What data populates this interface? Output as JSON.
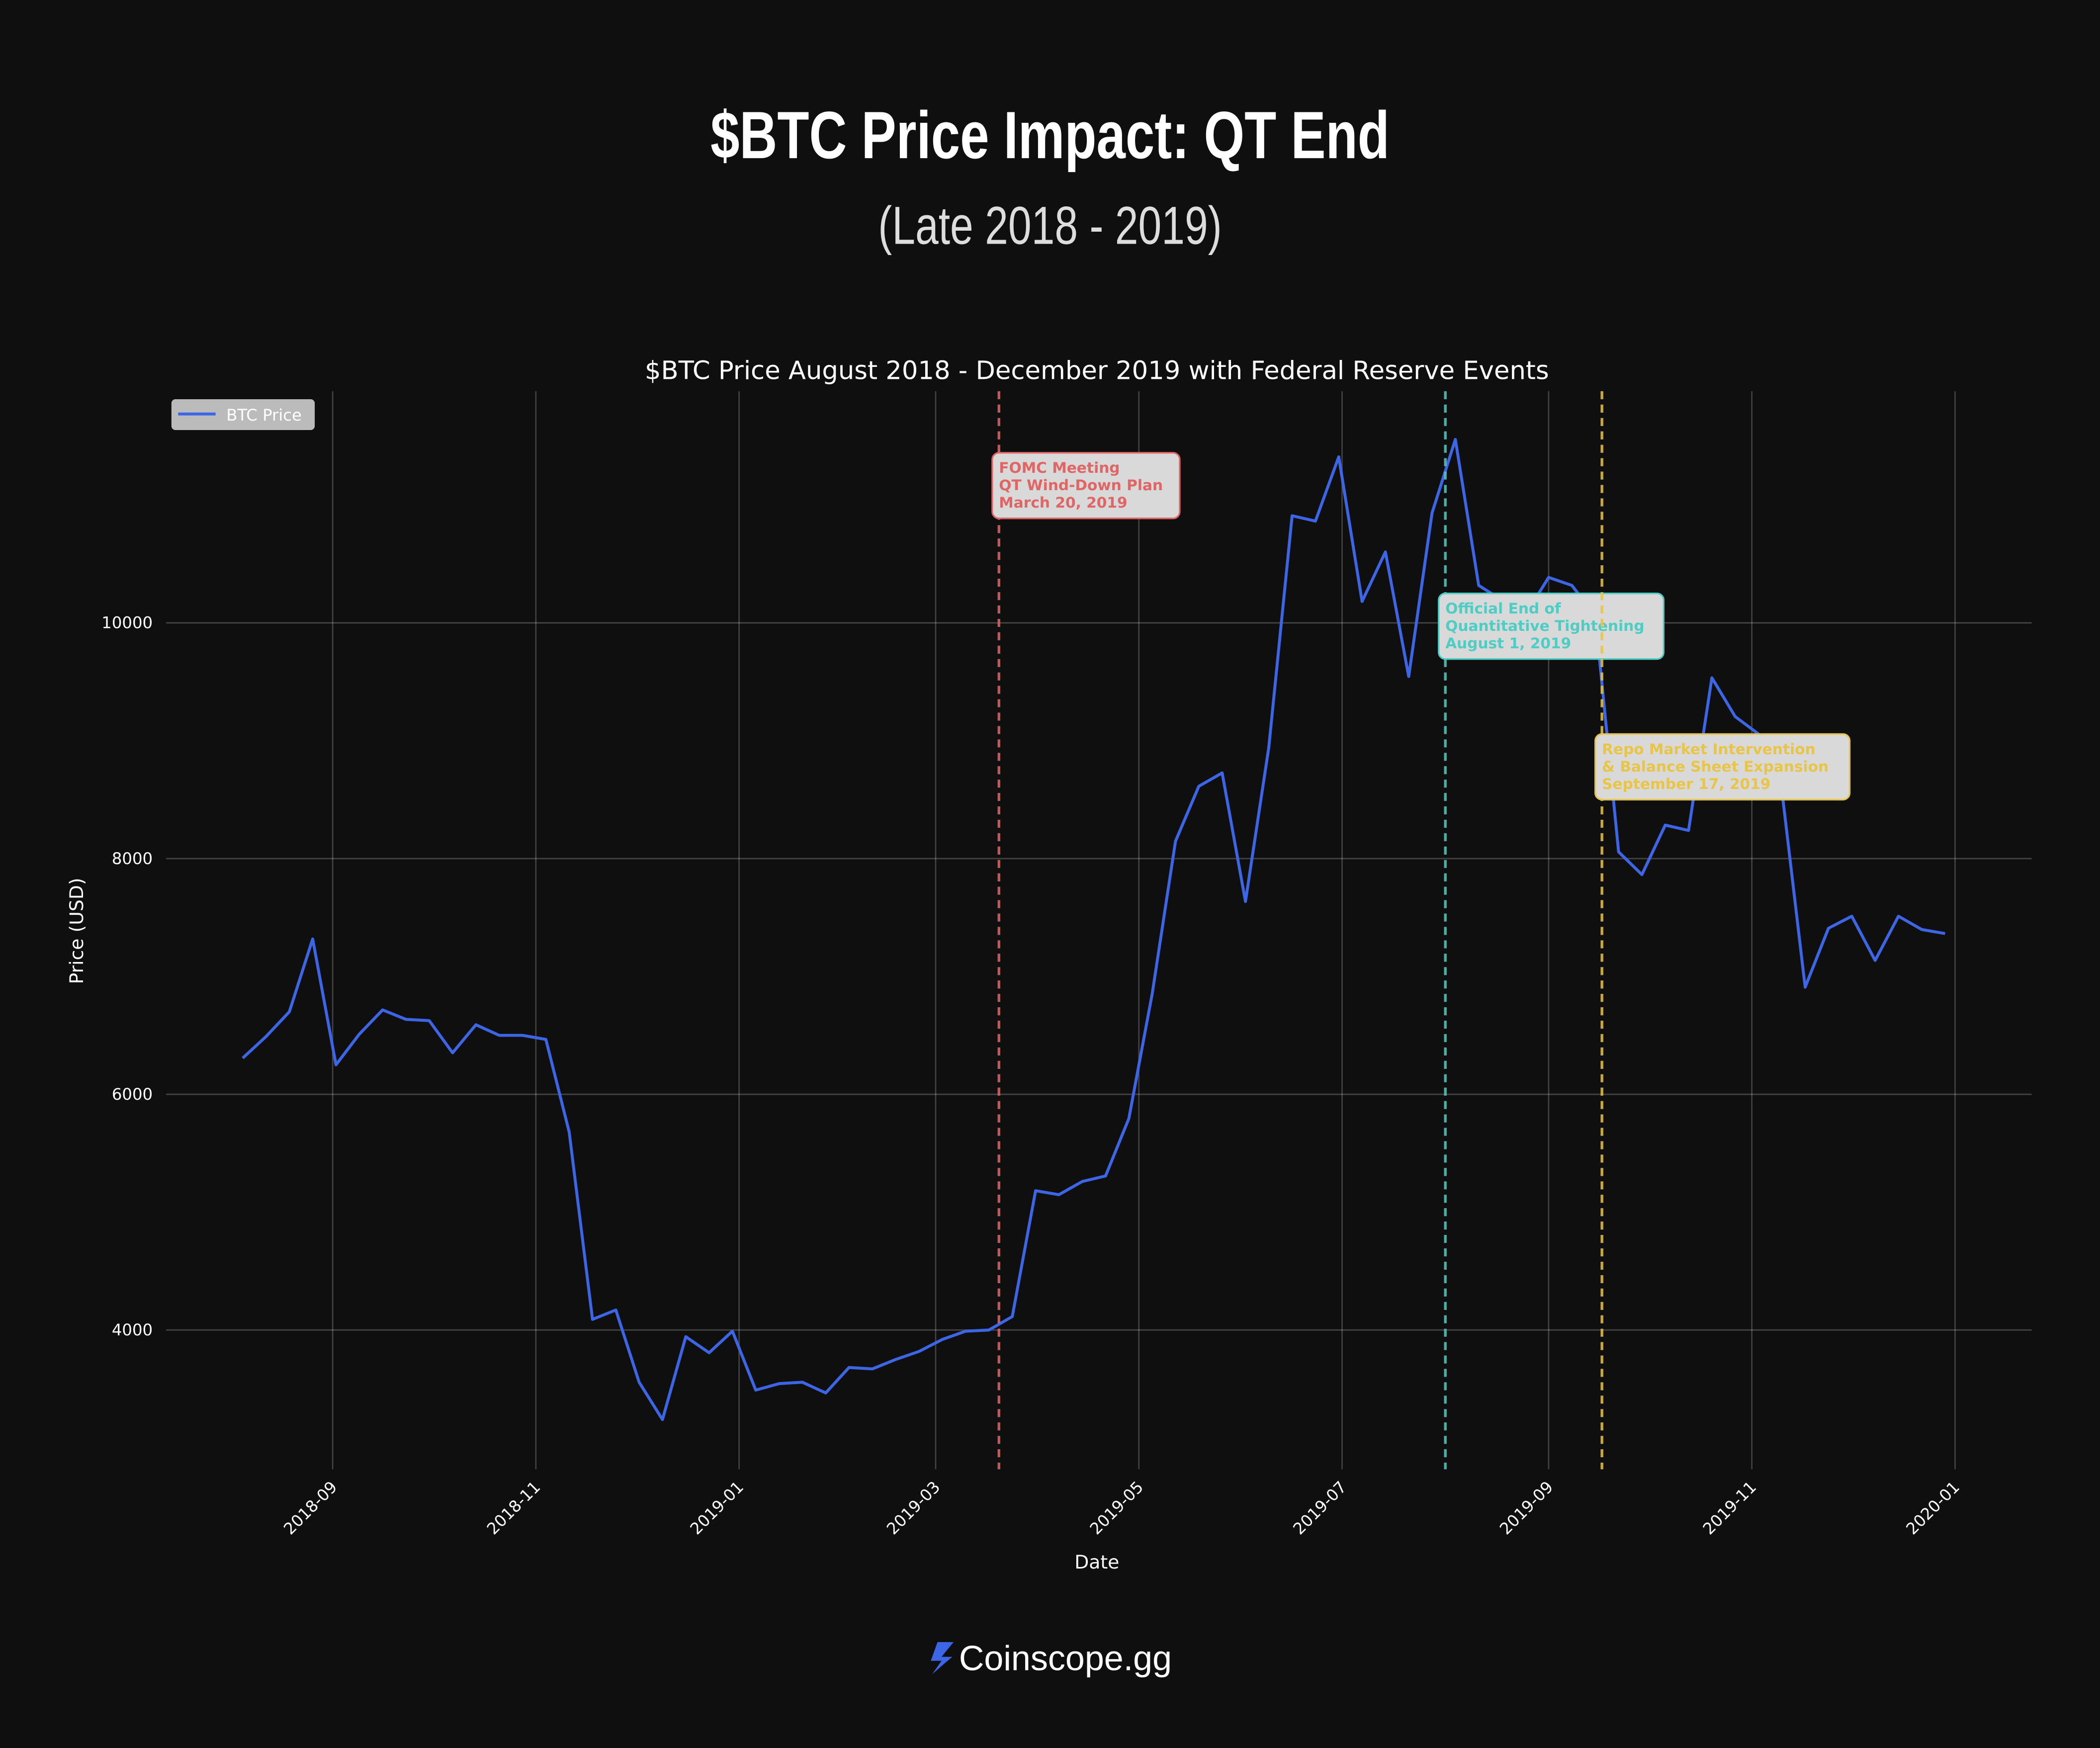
{
  "chart_data": {
    "type": "line",
    "title": "$BTC Price Impact: QT End",
    "subtitle": "(Late 2018 - 2019)",
    "plot_title": "$BTC Price August 2018 - December 2019 with Federal Reserve Events",
    "xlabel": "Date",
    "ylabel": "Price (USD)",
    "footer": "Coinscope.gg",
    "legend": "upper left",
    "grid": true,
    "x": [
      "2018-08-05",
      "2018-08-12",
      "2018-08-19",
      "2018-08-26",
      "2018-09-02",
      "2018-09-09",
      "2018-09-16",
      "2018-09-23",
      "2018-09-30",
      "2018-10-07",
      "2018-10-14",
      "2018-10-21",
      "2018-10-28",
      "2018-11-04",
      "2018-11-11",
      "2018-11-18",
      "2018-11-25",
      "2018-12-02",
      "2018-12-09",
      "2018-12-16",
      "2018-12-23",
      "2018-12-30",
      "2019-01-06",
      "2019-01-13",
      "2019-01-20",
      "2019-01-27",
      "2019-02-03",
      "2019-02-10",
      "2019-02-17",
      "2019-02-24",
      "2019-03-03",
      "2019-03-10",
      "2019-03-17",
      "2019-03-24",
      "2019-03-31",
      "2019-04-07",
      "2019-04-14",
      "2019-04-21",
      "2019-04-28",
      "2019-05-05",
      "2019-05-12",
      "2019-05-19",
      "2019-05-26",
      "2019-06-02",
      "2019-06-09",
      "2019-06-16",
      "2019-06-23",
      "2019-06-30",
      "2019-07-07",
      "2019-07-14",
      "2019-07-21",
      "2019-07-28",
      "2019-08-04",
      "2019-08-11",
      "2019-08-18",
      "2019-08-25",
      "2019-09-01",
      "2019-09-08",
      "2019-09-15",
      "2019-09-22",
      "2019-09-29",
      "2019-10-06",
      "2019-10-13",
      "2019-10-20",
      "2019-10-27",
      "2019-11-03",
      "2019-11-10",
      "2019-11-17",
      "2019-11-24",
      "2019-12-01",
      "2019-12-08",
      "2019-12-15",
      "2019-12-22",
      "2019-12-29"
    ],
    "series": [
      {
        "name": "BTC Price",
        "color": "#3d66e6",
        "values": [
          6307,
          6490,
          6700,
          7318,
          6250,
          6510,
          6716,
          6636,
          6625,
          6352,
          6590,
          6500,
          6500,
          6466,
          5680,
          4090,
          4170,
          3557,
          3240,
          3943,
          3807,
          3990,
          3490,
          3545,
          3557,
          3466,
          3682,
          3670,
          3750,
          3818,
          3920,
          3990,
          4000,
          4114,
          5182,
          5148,
          5260,
          5307,
          5795,
          6852,
          8148,
          8614,
          8727,
          7636,
          8943,
          10909,
          10864,
          11409,
          10182,
          10602,
          9545,
          10932,
          11557,
          10318,
          10193,
          10068,
          10386,
          10318,
          10057,
          8057,
          7864,
          8284,
          8239,
          9534,
          9205,
          9057,
          8580,
          6909,
          7409,
          7511,
          7136,
          7511,
          7398,
          7364
        ]
      }
    ],
    "events": [
      {
        "date": "2019-03-20",
        "color": "#e06666",
        "text": [
          "FOMC Meeting",
          "QT Wind-Down Plan",
          "March 20, 2019"
        ]
      },
      {
        "date": "2019-08-01",
        "color": "#4ecdc4",
        "text": [
          "Official End of",
          "Quantitative Tightening",
          "August 1, 2019"
        ]
      },
      {
        "date": "2019-09-17",
        "color": "#e8c547",
        "text": [
          "Repo Market Intervention",
          "& Balance Sheet Expansion",
          "September 17, 2019"
        ]
      }
    ],
    "xlim": [
      "2018-07-13",
      "2020-01-24"
    ],
    "xticks": [
      {
        "value": "2018-09-01",
        "label": "2018-09"
      },
      {
        "value": "2018-11-01",
        "label": "2018-11"
      },
      {
        "value": "2019-01-01",
        "label": "2019-01"
      },
      {
        "value": "2019-03-01",
        "label": "2019-03"
      },
      {
        "value": "2019-05-01",
        "label": "2019-05"
      },
      {
        "value": "2019-07-01",
        "label": "2019-07"
      },
      {
        "value": "2019-09-01",
        "label": "2019-09"
      },
      {
        "value": "2019-11-01",
        "label": "2019-11"
      },
      {
        "value": "2020-01-01",
        "label": "2020-01"
      }
    ],
    "ylim": [
      2818,
      11966
    ],
    "yticks": [
      4000,
      6000,
      8000,
      10000
    ]
  }
}
